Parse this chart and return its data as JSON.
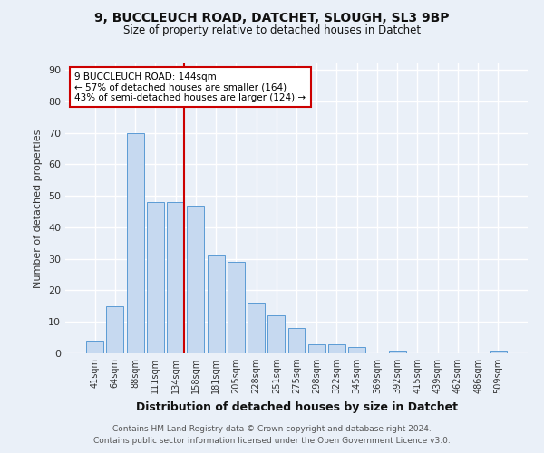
{
  "title1": "9, BUCCLEUCH ROAD, DATCHET, SLOUGH, SL3 9BP",
  "title2": "Size of property relative to detached houses in Datchet",
  "xlabel": "Distribution of detached houses by size in Datchet",
  "ylabel": "Number of detached properties",
  "categories": [
    "41sqm",
    "64sqm",
    "88sqm",
    "111sqm",
    "134sqm",
    "158sqm",
    "181sqm",
    "205sqm",
    "228sqm",
    "251sqm",
    "275sqm",
    "298sqm",
    "322sqm",
    "345sqm",
    "369sqm",
    "392sqm",
    "415sqm",
    "439sqm",
    "462sqm",
    "486sqm",
    "509sqm"
  ],
  "values": [
    4,
    15,
    70,
    48,
    48,
    47,
    31,
    29,
    16,
    12,
    8,
    3,
    3,
    2,
    0,
    1,
    0,
    0,
    0,
    0,
    1
  ],
  "bar_color": "#c6d9f0",
  "bar_edge_color": "#5b9bd5",
  "background_color": "#eaf0f8",
  "grid_color": "#ffffff",
  "annotation_line_color": "#cc0000",
  "annotation_box_text": "9 BUCCLEUCH ROAD: 144sqm\n← 57% of detached houses are smaller (164)\n43% of semi-detached houses are larger (124) →",
  "annotation_box_color": "#cc0000",
  "footer1": "Contains HM Land Registry data © Crown copyright and database right 2024.",
  "footer2": "Contains public sector information licensed under the Open Government Licence v3.0.",
  "ylim": [
    0,
    92
  ],
  "yticks": [
    0,
    10,
    20,
    30,
    40,
    50,
    60,
    70,
    80,
    90
  ]
}
